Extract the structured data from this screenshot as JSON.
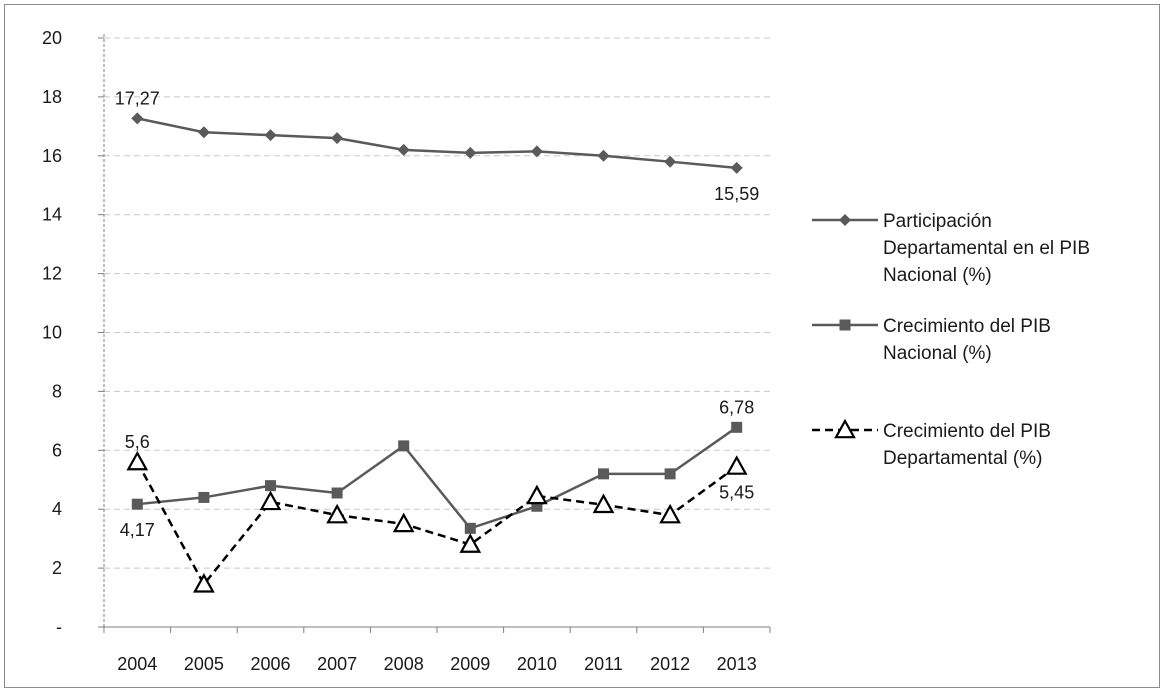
{
  "chart_data": {
    "type": "line",
    "categories": [
      "2004",
      "2005",
      "2006",
      "2007",
      "2008",
      "2009",
      "2010",
      "2011",
      "2012",
      "2013"
    ],
    "ylim": [
      0,
      20
    ],
    "yticks": [
      0,
      2,
      4,
      6,
      8,
      10,
      12,
      14,
      16,
      18,
      20
    ],
    "ytick_labels": [
      "-",
      "2",
      "4",
      "6",
      "8",
      "10",
      "12",
      "14",
      "16",
      "18",
      "20"
    ],
    "grid": true,
    "legend_position": "right",
    "series": [
      {
        "name": "Participación Departamental en el PIB Nacional (%)",
        "legend_lines": [
          "Participación",
          "Departamental en el PIB",
          "Nacional (%)"
        ],
        "values": [
          17.27,
          16.8,
          16.7,
          16.6,
          16.2,
          16.1,
          16.15,
          16.0,
          15.8,
          15.59
        ],
        "marker": "diamond",
        "dash": "solid",
        "color": "#5a5a5a",
        "labels": [
          {
            "index": 0,
            "text": "17,27",
            "place": "above"
          },
          {
            "index": 9,
            "text": "15,59",
            "place": "below"
          }
        ]
      },
      {
        "name": "Crecimiento del PIB Nacional (%)",
        "legend_lines": [
          "Crecimiento del PIB",
          "Nacional (%)"
        ],
        "values": [
          4.17,
          4.4,
          4.8,
          4.55,
          6.15,
          3.35,
          4.1,
          5.2,
          5.2,
          6.78
        ],
        "marker": "square",
        "dash": "solid",
        "color": "#5a5a5a",
        "labels": [
          {
            "index": 0,
            "text": "4,17",
            "place": "below"
          },
          {
            "index": 9,
            "text": "6,78",
            "place": "above"
          }
        ]
      },
      {
        "name": "Crecimiento del PIB Departamental (%)",
        "legend_lines": [
          "Crecimiento del PIB",
          "Departamental (%)"
        ],
        "values": [
          5.6,
          1.45,
          4.25,
          3.8,
          3.5,
          2.8,
          4.45,
          4.15,
          3.8,
          5.45
        ],
        "marker": "triangle",
        "dash": "dashed",
        "color": "#000000",
        "labels": [
          {
            "index": 0,
            "text": "5,6",
            "place": "above"
          },
          {
            "index": 9,
            "text": "5,45",
            "place": "below"
          }
        ]
      }
    ]
  }
}
